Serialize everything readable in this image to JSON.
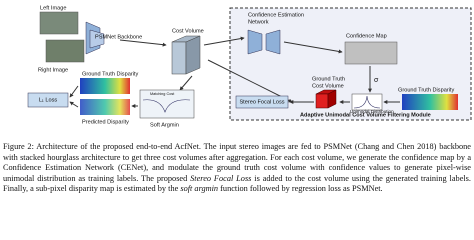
{
  "diagram": {
    "left_image": "Left Image",
    "right_image": "Right Image",
    "backbone": "PSMNet Backbone",
    "cost_volume": "Cost Volume",
    "gt_disparity_left": "Ground Truth Disparity",
    "l1_loss": "L₁ Loss",
    "predicted_disparity": "Predicted Disparity",
    "matching_cost": "Matching Cost",
    "soft_argmin": "Soft Argmin",
    "cenet": [
      "Confidence Estimation",
      "Network"
    ],
    "confidence_map": "Confidence Map",
    "sigma": "σ",
    "gt_cost_volume": [
      "Ground Truth",
      "Cost Volume"
    ],
    "unimodal": "Unimodal Distribution",
    "gt_disparity_right": "Ground Truth Disparity",
    "focal_loss": "Stereo Focal Loss",
    "module": "Adaptive Unimodal Cost Volume Filtering Module"
  },
  "caption": {
    "text_1": "Figure 2: Architecture of the proposed end-to-end AcfNet. The input stereo images are fed to PSMNet (Chang and Chen 2018) backbone with stacked hourglass architecture to get three cost volumes after aggregation. For each cost volume, we generate the confidence map by a Confidence Estimation Network (CENet), and modulate the ground truth cost volume with confidence values to generate pixel-wise unimodal distribution as training labels. The proposed ",
    "emphasis_1": "Stereo Focal Loss",
    "text_2": " is added to the cost volume using the generated training labels. Finally, a sub-pixel disparity map is estimated by the ",
    "emphasis_2": "soft argmin",
    "text_3": " function followed by regression loss as PSMNet."
  }
}
